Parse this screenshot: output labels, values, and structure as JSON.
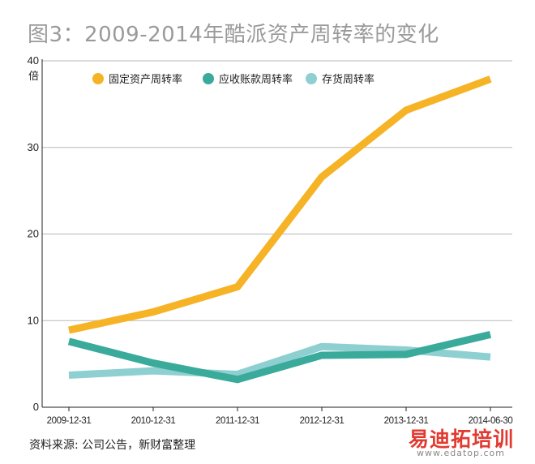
{
  "page": {
    "title": "图3：2009-2014年酷派资产周转率的变化",
    "source": "资料来源: 公司公告，新财富整理"
  },
  "watermark": {
    "name": "易迪拓培训",
    "url": "www.edatop.com"
  },
  "chart_data": {
    "type": "line",
    "title": "图3：2009-2014年酷派资产周转率的变化",
    "ylabel": "倍",
    "xlabel": "",
    "ylim": [
      0,
      40
    ],
    "yticks": [
      0,
      10,
      20,
      30,
      40
    ],
    "grid": true,
    "legend_position": "top",
    "categories": [
      "2009-12-31",
      "2010-12-31",
      "2011-12-31",
      "2012-12-31",
      "2013-12-31",
      "2014-06-30"
    ],
    "series": [
      {
        "name": "固定资产周转率",
        "color": "#f5b325",
        "values": [
          8.9,
          11.0,
          13.9,
          26.6,
          34.3,
          37.9
        ]
      },
      {
        "name": "应收账款周转率",
        "color": "#3aaa9b",
        "values": [
          7.6,
          5.1,
          3.2,
          6.0,
          6.1,
          8.4
        ]
      },
      {
        "name": "存货周转率",
        "color": "#8ecfd2",
        "values": [
          3.7,
          4.2,
          3.8,
          7.0,
          6.6,
          5.8
        ]
      }
    ]
  }
}
